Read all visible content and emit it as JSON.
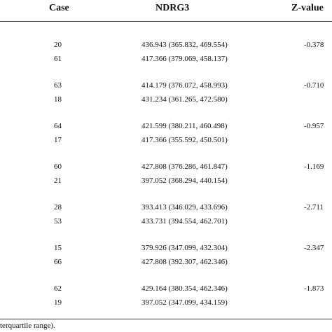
{
  "table": {
    "headers": {
      "case": "Case",
      "ndrg3": "NDRG3",
      "zvalue": "Z-value"
    },
    "groups": [
      {
        "rows": [
          {
            "case": "20",
            "ndrg3": "436.943 (365.832, 469.554)"
          },
          {
            "case": "61",
            "ndrg3": "417.366 (379.069, 458.137)"
          }
        ],
        "z": "-0.378"
      },
      {
        "rows": [
          {
            "case": "63",
            "ndrg3": "414.179 (376.072, 458.993)"
          },
          {
            "case": "18",
            "ndrg3": "431.234 (361.265, 472.580)"
          }
        ],
        "z": "-0.710"
      },
      {
        "rows": [
          {
            "case": "64",
            "ndrg3": "421.599 (380.211, 460.498)"
          },
          {
            "case": "17",
            "ndrg3": "417.366 (355.592, 450.501)"
          }
        ],
        "z": "-0.957"
      },
      {
        "rows": [
          {
            "case": "60",
            "ndrg3": "427.808 (376.286, 461.847)"
          },
          {
            "case": "21",
            "ndrg3": "397.052 (368.294, 440.154)"
          }
        ],
        "z": "-1.169"
      },
      {
        "rows": [
          {
            "case": "28",
            "ndrg3": "393.413 (346.029, 433.696)"
          },
          {
            "case": "53",
            "ndrg3": "433.731 (394.554, 462.701)"
          }
        ],
        "z": "-2.711"
      },
      {
        "rows": [
          {
            "case": "15",
            "ndrg3": "379.926 (347.099, 432.304)"
          },
          {
            "case": "66",
            "ndrg3": "427.808 (392.307, 462.346)"
          }
        ],
        "z": "-2.347"
      },
      {
        "rows": [
          {
            "case": "62",
            "ndrg3": "429.164 (380.354, 462.346)"
          },
          {
            "case": "19",
            "ndrg3": "397.052 (347.099, 434.159)"
          }
        ],
        "z": "-1.873"
      }
    ],
    "footnote": "terquartile range)."
  }
}
